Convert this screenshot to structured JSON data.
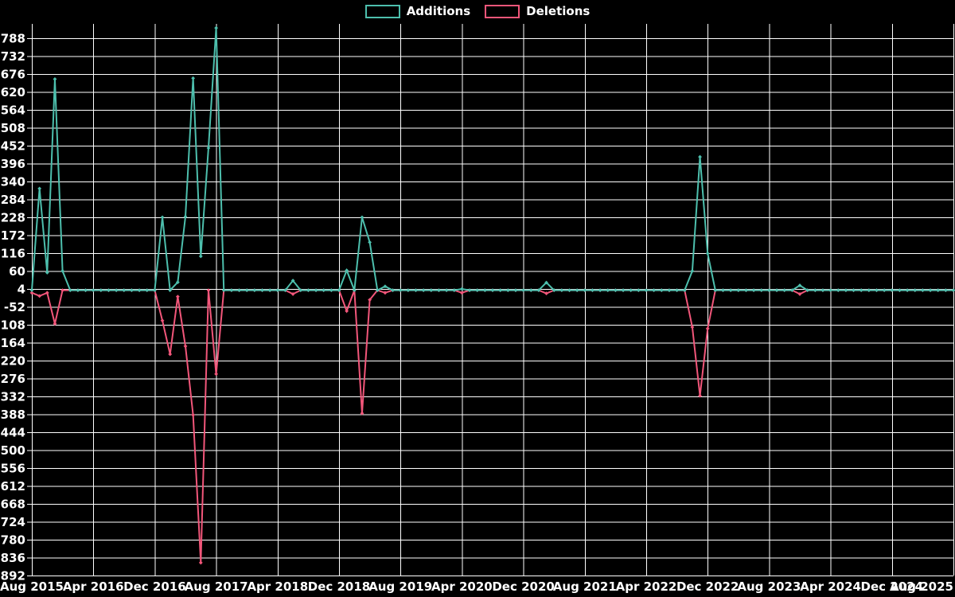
{
  "legend": {
    "items": [
      {
        "label": "Additions",
        "color": "#4DBFAD"
      },
      {
        "label": "Deletions",
        "color": "#F2567A"
      }
    ]
  },
  "chart_data": {
    "type": "line",
    "title": "",
    "xlabel": "",
    "ylabel": "",
    "background_color": "#000000",
    "grid_color": "#FFFFFF",
    "text_color": "#FFFFFF",
    "grid": true,
    "legend_position": "top-center",
    "x_axis": {
      "start_month": "Aug 2015",
      "end_month": "Aug 2025",
      "months_total": 121,
      "tick_every_months": 8,
      "tick_labels": [
        "Aug 2015",
        "Apr 2016",
        "Dec 2016",
        "Aug 2017",
        "Apr 2018",
        "Dec 2018",
        "Aug 2019",
        "Apr 2020",
        "Dec 2020",
        "Aug 2021",
        "Apr 2022",
        "Dec 2022",
        "Aug 2023",
        "Apr 2024",
        "Dec 2024",
        "Aug 2025"
      ]
    },
    "y_axis": {
      "min": -892,
      "max": 788,
      "tick_step": 56,
      "tick_values": [
        788,
        732,
        676,
        620,
        564,
        508,
        452,
        396,
        340,
        284,
        228,
        172,
        116,
        60,
        4,
        -52,
        -108,
        -164,
        -220,
        -276,
        -332,
        -388,
        -444,
        -500,
        -556,
        -612,
        -668,
        -724,
        -780,
        -836,
        -892
      ]
    },
    "baseline_value": 0,
    "series": [
      {
        "name": "Additions",
        "color": "#4DBFAD",
        "baseline": 0,
        "nonzero_points": [
          [
            1,
            "Sep 2015",
            318
          ],
          [
            2,
            "Oct 2015",
            55
          ],
          [
            3,
            "Nov 2015",
            660
          ],
          [
            4,
            "Dec 2015",
            60
          ],
          [
            17,
            "Jan 2017",
            228
          ],
          [
            19,
            "Mar 2017",
            25
          ],
          [
            20,
            "Apr 2017",
            230
          ],
          [
            21,
            "May 2017",
            663
          ],
          [
            22,
            "Jun 2017",
            106
          ],
          [
            23,
            "Jul 2017",
            445
          ],
          [
            24,
            "Aug 2017",
            820
          ],
          [
            34,
            "Jun 2018",
            30
          ],
          [
            41,
            "Jan 2019",
            62
          ],
          [
            43,
            "Mar 2019",
            228
          ],
          [
            44,
            "Apr 2019",
            150
          ],
          [
            46,
            "Jun 2019",
            12
          ],
          [
            56,
            "Apr 2020",
            4
          ],
          [
            67,
            "Mar 2021",
            24
          ],
          [
            86,
            "Oct 2022",
            60
          ],
          [
            87,
            "Nov 2022",
            417
          ],
          [
            88,
            "Dec 2022",
            115
          ],
          [
            100,
            "Dec 2023",
            15
          ]
        ]
      },
      {
        "name": "Deletions",
        "color": "#F2567A",
        "baseline": 0,
        "nonzero_points": [
          [
            0,
            "Aug 2015",
            -8
          ],
          [
            1,
            "Sep 2015",
            -18
          ],
          [
            2,
            "Oct 2015",
            -8
          ],
          [
            3,
            "Nov 2015",
            -105
          ],
          [
            17,
            "Jan 2017",
            -95
          ],
          [
            18,
            "Feb 2017",
            -200
          ],
          [
            19,
            "Mar 2017",
            -20
          ],
          [
            20,
            "Apr 2017",
            -175
          ],
          [
            21,
            "May 2017",
            -390
          ],
          [
            22,
            "Jun 2017",
            -852
          ],
          [
            24,
            "Aug 2017",
            -262
          ],
          [
            34,
            "Jun 2018",
            -12
          ],
          [
            41,
            "Jan 2019",
            -65
          ],
          [
            43,
            "Mar 2019",
            -385
          ],
          [
            44,
            "Apr 2019",
            -30
          ],
          [
            46,
            "Jun 2019",
            -8
          ],
          [
            56,
            "Apr 2020",
            -8
          ],
          [
            67,
            "Mar 2021",
            -10
          ],
          [
            86,
            "Oct 2022",
            -115
          ],
          [
            87,
            "Nov 2022",
            -330
          ],
          [
            88,
            "Dec 2022",
            -120
          ],
          [
            100,
            "Dec 2023",
            -12
          ]
        ]
      }
    ]
  }
}
